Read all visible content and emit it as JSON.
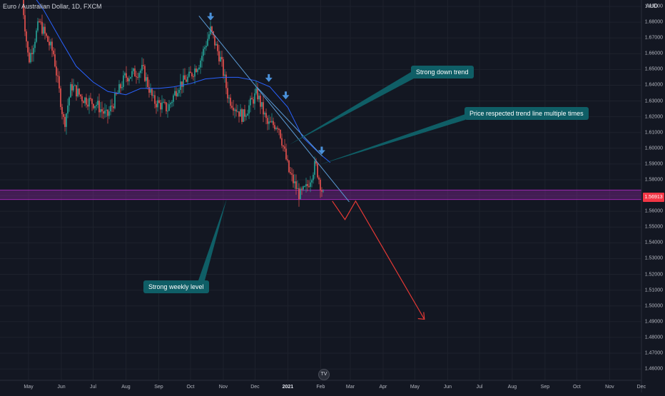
{
  "header": {
    "symbol": "Euro / Australian Dollar, 1D, FXCM",
    "currency": "AUD"
  },
  "price_axis": {
    "labels": [
      "1.69000",
      "1.68000",
      "1.67000",
      "1.66000",
      "1.65000",
      "1.64000",
      "1.63000",
      "1.62000",
      "1.61000",
      "1.60000",
      "1.59000",
      "1.58000",
      "1.57000",
      "1.56000",
      "1.55000",
      "1.54000",
      "1.53000",
      "1.52000",
      "1.51000",
      "1.50000",
      "1.49000",
      "1.48000",
      "1.47000",
      "1.46000"
    ],
    "current_price": "1.56913"
  },
  "time_axis": {
    "labels": [
      "May",
      "Jun",
      "Jul",
      "Aug",
      "Sep",
      "Oct",
      "Nov",
      "Dec",
      "2021",
      "Feb",
      "Mar",
      "Apr",
      "May",
      "Jun",
      "Jul",
      "Aug",
      "Sep",
      "Oct",
      "Nov",
      "Dec"
    ]
  },
  "annotations": {
    "downtrend": "Strong down trend",
    "trendline": "Price respected trend line multiple times",
    "weekly": "Strong weekly level"
  },
  "colors": {
    "background": "#131722",
    "up_candle": "#26a69a",
    "down_candle": "#ef5350",
    "moving_average": "#2962ff",
    "trend_line": "#5b9bd5",
    "projection": "#e53935",
    "weekly_zone": "#9c27b0",
    "callout": "#0f5e66",
    "arrow": "#4a90d9"
  },
  "logo": {
    "icon": "tradingview-logo",
    "text": "TV"
  },
  "chart_data": {
    "type": "candlestick",
    "title": "Euro / Australian Dollar, 1D, FXCM",
    "y_unit": "AUD",
    "ylim": [
      1.455,
      1.695
    ],
    "x_range": [
      "2020-04-27",
      "2021-12-31"
    ],
    "overlays": [
      {
        "name": "moving_average",
        "x": [
          "2020-04-27",
          "2020-05-15",
          "2020-06-01",
          "2020-06-15",
          "2020-07-01",
          "2020-07-15",
          "2020-08-01",
          "2020-08-15",
          "2020-09-01",
          "2020-09-15",
          "2020-10-01",
          "2020-10-15",
          "2020-11-01",
          "2020-11-15",
          "2020-12-01",
          "2020-12-15",
          "2021-01-01",
          "2021-01-15",
          "2021-02-01",
          "2021-02-10"
        ],
        "y": [
          1.705,
          1.688,
          1.668,
          1.652,
          1.642,
          1.636,
          1.634,
          1.638,
          1.638,
          1.639,
          1.641,
          1.644,
          1.645,
          1.645,
          1.643,
          1.639,
          1.626,
          1.607,
          1.596,
          1.591
        ]
      },
      {
        "name": "trend_line",
        "x": [
          "2020-10-09",
          "2021-02-28"
        ],
        "y": [
          1.684,
          1.566
        ]
      },
      {
        "name": "projection",
        "x": [
          "2021-02-12",
          "2021-02-24",
          "2021-03-06",
          "2021-05-10"
        ],
        "y": [
          1.5665,
          1.5548,
          1.5665,
          1.4915
        ]
      },
      {
        "name": "weekly_level_zone",
        "y": [
          1.5675,
          1.5735
        ]
      }
    ],
    "markers": [
      {
        "type": "down_arrow",
        "x": "2020-10-20",
        "y": 1.6815
      },
      {
        "type": "down_arrow",
        "x": "2020-12-14",
        "y": 1.6425
      },
      {
        "type": "down_arrow",
        "x": "2020-12-30",
        "y": 1.6315
      },
      {
        "type": "down_arrow",
        "x": "2021-02-02",
        "y": 1.5965
      }
    ]
  }
}
